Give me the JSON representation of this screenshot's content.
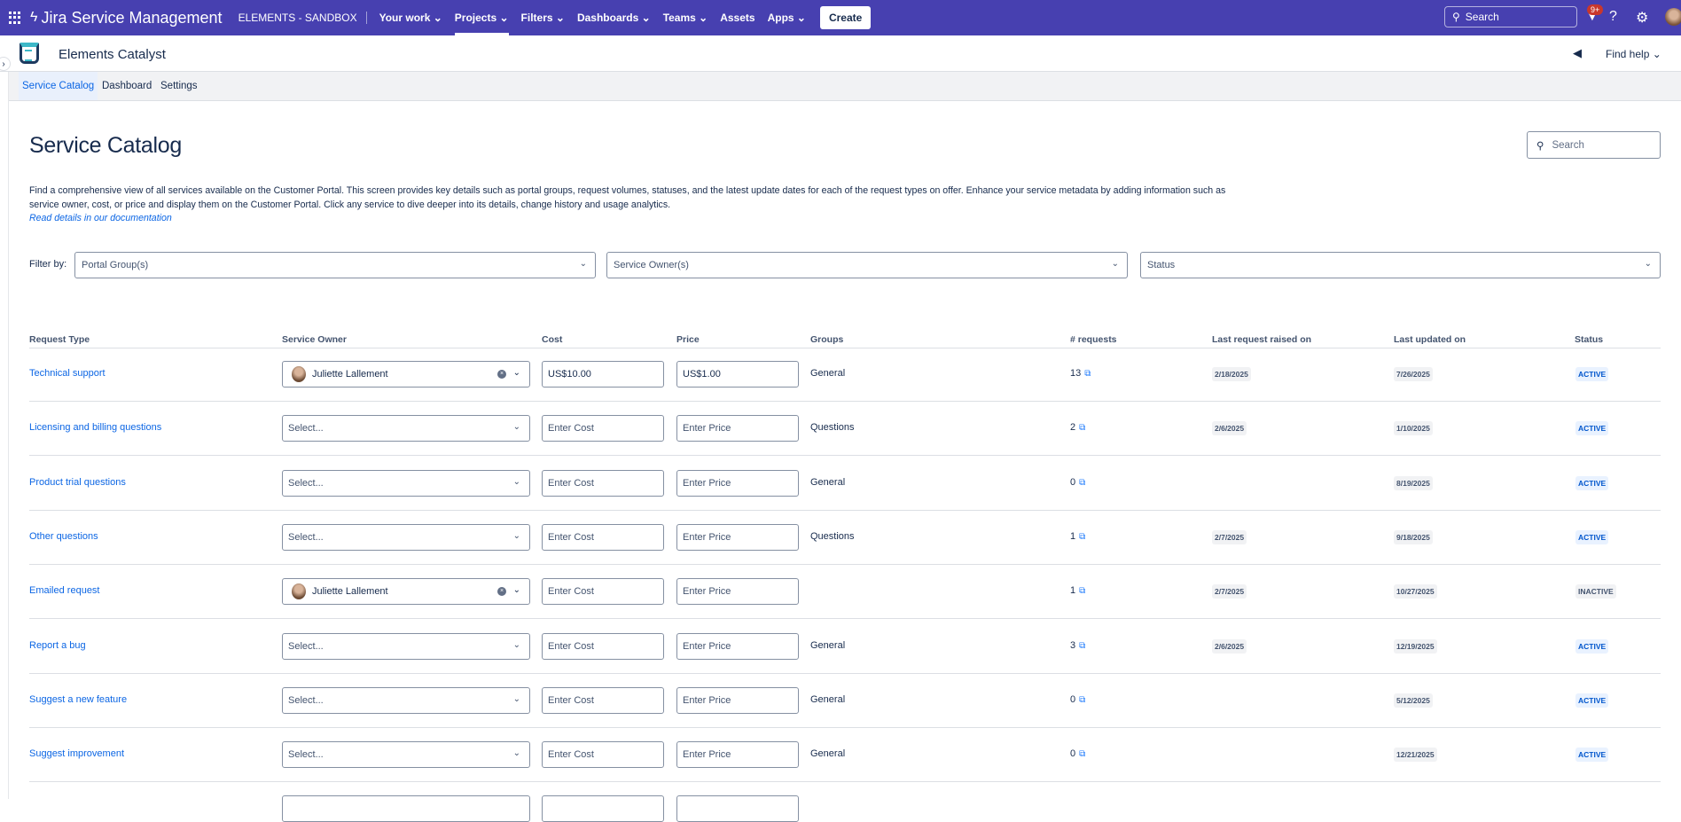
{
  "topnav": {
    "product": "Jira Service Management",
    "project": "ELEMENTS - SANDBOX",
    "items": [
      {
        "label": "Your work ⌄"
      },
      {
        "label": "Projects ⌄"
      },
      {
        "label": "Filters ⌄"
      },
      {
        "label": "Dashboards ⌄"
      },
      {
        "label": "Teams ⌄"
      },
      {
        "label": "Assets"
      },
      {
        "label": "Apps ⌄"
      }
    ],
    "create": "Create",
    "search_placeholder": "Search",
    "notifications_badge": "9+"
  },
  "app": {
    "name": "Elements Catalyst",
    "find_help": "Find help"
  },
  "tabs": [
    {
      "label": "Service Catalog"
    },
    {
      "label": "Dashboard"
    },
    {
      "label": "Settings"
    }
  ],
  "page": {
    "title": "Service Catalog",
    "search_placeholder": "Search",
    "description": "Find a comprehensive view of all services available on the Customer Portal. This screen provides key details such as portal groups, request volumes, statuses, and the latest update dates for each of the request types on offer. Enhance your service metadata by adding information such as service owner, cost, or price and display them on the Customer Portal. Click any service to dive deeper into its details, change history and usage analytics.",
    "doc_link": "Read details in our documentation"
  },
  "filters": {
    "label": "Filter by:",
    "portal_group": "Portal Group(s)",
    "service_owner": "Service Owner(s)",
    "status": "Status"
  },
  "table": {
    "headers": [
      "Request Type",
      "Service Owner",
      "Cost",
      "Price",
      "Groups",
      "# requests",
      "Last request raised on",
      "Last updated on",
      "Status"
    ],
    "owner_placeholder": "Select...",
    "cost_placeholder": "Enter Cost",
    "price_placeholder": "Enter Price",
    "rows": [
      {
        "type": "Technical support",
        "owner": "Juliette Lallement",
        "cost": "US$10.00",
        "price": "US$1.00",
        "group": "General",
        "requests": "13",
        "last_raised": "2/18/2025",
        "last_updated": "7/26/2025",
        "status": "ACTIVE"
      },
      {
        "type": "Licensing and billing questions",
        "owner": "",
        "cost": "",
        "price": "",
        "group": "Questions",
        "requests": "2",
        "last_raised": "2/6/2025",
        "last_updated": "1/10/2025",
        "status": "ACTIVE"
      },
      {
        "type": "Product trial questions",
        "owner": "",
        "cost": "",
        "price": "",
        "group": "General",
        "requests": "0",
        "last_raised": "",
        "last_updated": "8/19/2025",
        "status": "ACTIVE"
      },
      {
        "type": "Other questions",
        "owner": "",
        "cost": "",
        "price": "",
        "group": "Questions",
        "requests": "1",
        "last_raised": "2/7/2025",
        "last_updated": "9/18/2025",
        "status": "ACTIVE"
      },
      {
        "type": "Emailed request",
        "owner": "Juliette Lallement",
        "cost": "",
        "price": "",
        "group": "",
        "requests": "1",
        "last_raised": "2/7/2025",
        "last_updated": "10/27/2025",
        "status": "INACTIVE"
      },
      {
        "type": "Report a bug",
        "owner": "",
        "cost": "",
        "price": "",
        "group": "General",
        "requests": "3",
        "last_raised": "2/6/2025",
        "last_updated": "12/19/2025",
        "status": "ACTIVE"
      },
      {
        "type": "Suggest a new feature",
        "owner": "",
        "cost": "",
        "price": "",
        "group": "General",
        "requests": "0",
        "last_raised": "",
        "last_updated": "5/12/2025",
        "status": "ACTIVE"
      },
      {
        "type": "Suggest improvement",
        "owner": "",
        "cost": "",
        "price": "",
        "group": "General",
        "requests": "0",
        "last_raised": "",
        "last_updated": "12/21/2025",
        "status": "ACTIVE"
      }
    ]
  },
  "colors": {
    "nav": "#4740b0",
    "link": "#0c66e4",
    "active_status": "#0055cc"
  }
}
